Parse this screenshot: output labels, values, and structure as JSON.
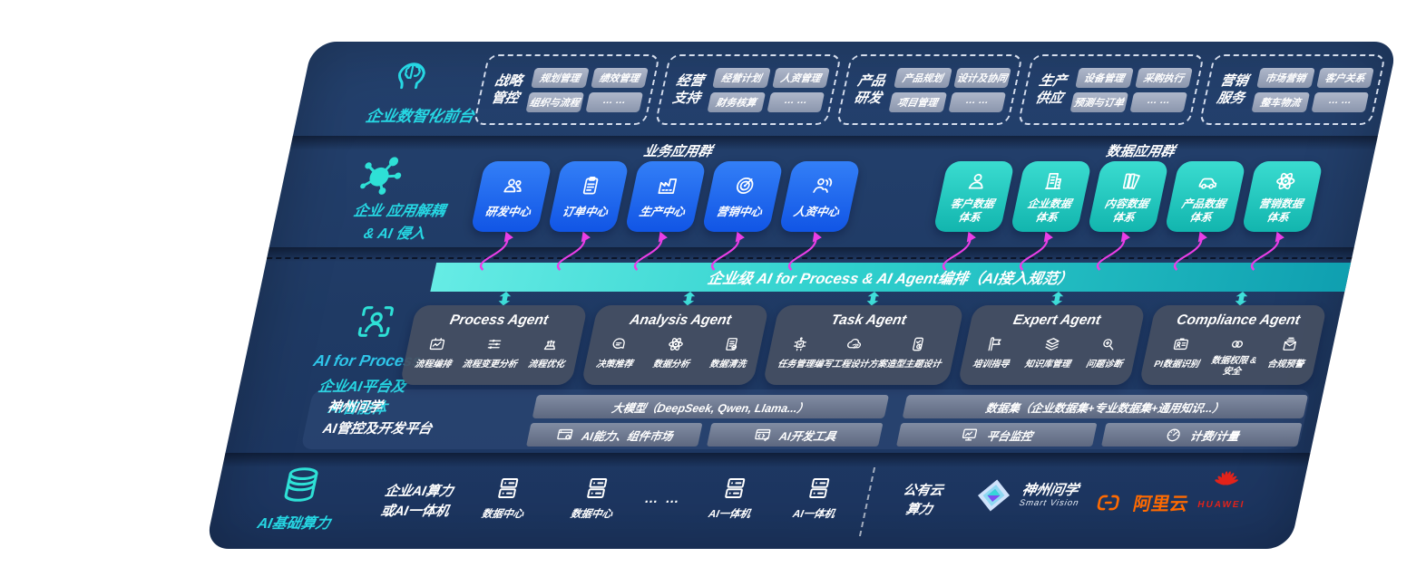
{
  "colors": {
    "navy": "#1f3a64",
    "accent_teal": "#26d7e3",
    "box_blue": "#1f6cf0",
    "box_teal": "#2bd3c8",
    "band_teal": "#2fd0cd",
    "arrow_magenta": "#ea3ee6",
    "chip_gray": "#9aa3b8",
    "aliyun_orange": "#ff6a00",
    "huawei_red": "#e2231a"
  },
  "layer1": {
    "icon": "brain-icon",
    "label": "企业数智化前台",
    "groups": [
      {
        "name": "战略管控",
        "chips": [
          "规划管理",
          "绩效管理",
          "组织与流程",
          "… …"
        ]
      },
      {
        "name": "经营支持",
        "chips": [
          "经营计划",
          "人资管理",
          "财务核算",
          "… …"
        ]
      },
      {
        "name": "产品研发",
        "chips": [
          "产品规划",
          "设计及协同",
          "项目管理",
          "… …"
        ]
      },
      {
        "name": "生产供应",
        "chips": [
          "设备管理",
          "采购执行",
          "预测与订单",
          "… …"
        ]
      },
      {
        "name": "营销服务",
        "chips": [
          "市场营销",
          "客户关系",
          "整车物流",
          "… …"
        ]
      }
    ]
  },
  "layer2": {
    "icon": "molecule-icon",
    "label_line1": "企业 应用解耦",
    "label_line2": "& AI 侵入",
    "biz_title": "业务应用群",
    "biz_boxes": [
      {
        "label": "研发中心",
        "icon": "team-icon"
      },
      {
        "label": "订单中心",
        "icon": "clipboard-icon"
      },
      {
        "label": "生产中心",
        "icon": "factory-icon"
      },
      {
        "label": "营销中心",
        "icon": "target-icon"
      },
      {
        "label": "人资中心",
        "icon": "person-wave-icon"
      }
    ],
    "data_title": "数据应用群",
    "data_boxes": [
      {
        "label": "客户数据体系",
        "icon": "person-icon"
      },
      {
        "label": "企业数据体系",
        "icon": "building-icon"
      },
      {
        "label": "内容数据体系",
        "icon": "books-icon"
      },
      {
        "label": "产品数据体系",
        "icon": "car-icon"
      },
      {
        "label": "营销数据体系",
        "icon": "atom-icon"
      }
    ]
  },
  "layer3": {
    "icon": "scan-person-icon",
    "rail_title": "AI for Process",
    "rail_sub1": "企业AI平台及",
    "rail_sub2": "AI智能体",
    "band_text": "企业级 AI for Process & AI Agent编排（AI接入规范）",
    "updown_icon": "updown-arrow-icon",
    "agents": [
      {
        "title": "Process Agent",
        "items": [
          {
            "label": "流程编排",
            "icon": "flow-chart-icon"
          },
          {
            "label": "流程变更分析",
            "icon": "sliders-icon"
          },
          {
            "label": "流程优化",
            "icon": "optimize-icon"
          }
        ]
      },
      {
        "title": "Analysis Agent",
        "items": [
          {
            "label": "决策推荐",
            "icon": "decision-icon"
          },
          {
            "label": "数据分析",
            "icon": "atom-icon"
          },
          {
            "label": "数据清洗",
            "icon": "doc-clean-icon"
          }
        ]
      },
      {
        "title": "Task Agent",
        "items": [
          {
            "label": "任务管理",
            "icon": "task-grid-icon"
          },
          {
            "label": "编写工程设计方案",
            "icon": "cloud-edit-icon"
          },
          {
            "label": "造型主题设计",
            "icon": "design-check-icon"
          }
        ]
      },
      {
        "title": "Expert Agent",
        "items": [
          {
            "label": "培训指导",
            "icon": "training-icon"
          },
          {
            "label": "知识库管理",
            "icon": "layers-icon"
          },
          {
            "label": "问题诊断",
            "icon": "diagnose-icon"
          }
        ]
      },
      {
        "title": "Compliance Agent",
        "items": [
          {
            "label": "PI数据识别",
            "icon": "id-card-icon"
          },
          {
            "label": "数据权限 & 安全",
            "icon": "permission-icon"
          },
          {
            "label": "合规预警",
            "icon": "alert-mail-icon"
          }
        ]
      }
    ],
    "platform": {
      "label_line1": "神州问学",
      "label_line2": "AI管控及开发平台",
      "model_bar": "大模型（DeepSeek, Qwen, Llama...）",
      "left_cells": [
        {
          "label": "AI能力、组件市场",
          "icon": "window-gear-icon"
        },
        {
          "label": "AI开发工具",
          "icon": "dev-tools-icon"
        }
      ],
      "dataset_bar": "数据集（企业数据集+专业数据集+通用知识...）",
      "right_cells": [
        {
          "label": "平台监控",
          "icon": "monitor-icon"
        },
        {
          "label": "计费/计量",
          "icon": "gauge-icon"
        }
      ]
    }
  },
  "layer4": {
    "icon": "database-icon",
    "label": "AI基础算力",
    "compute_line1": "企业AI算力",
    "compute_line2": "或AI一体机",
    "nodes": [
      {
        "label": "数据中心",
        "icon": "server-icon"
      },
      {
        "label": "数据中心",
        "icon": "server-icon"
      }
    ],
    "dots": "… …",
    "nodes2": [
      {
        "label": "AI一体机",
        "icon": "server-icon"
      },
      {
        "label": "AI一体机",
        "icon": "server-icon"
      }
    ],
    "cloud_line1": "公有云",
    "cloud_line2": "算力",
    "vendors": {
      "smart_vision": {
        "name": "神州问学",
        "sub": "Smart Vision",
        "icon": "diamond-logo-icon"
      },
      "aliyun": {
        "name": "阿里云",
        "icon": "aliyun-icon"
      },
      "huawei": {
        "name": "HUAWEI",
        "icon": "huawei-icon"
      }
    }
  }
}
